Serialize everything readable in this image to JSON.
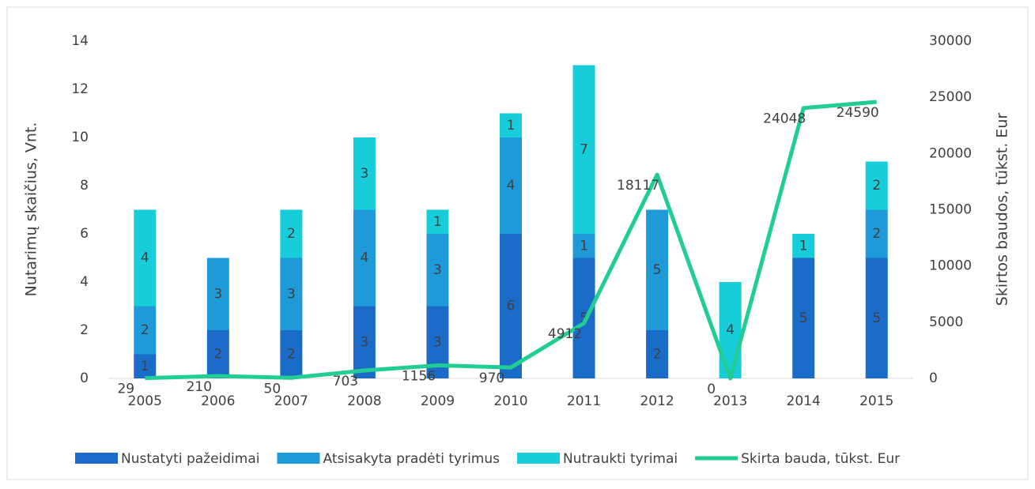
{
  "chart_data": {
    "type": "bar-line",
    "categories": [
      "2005",
      "2006",
      "2007",
      "2008",
      "2009",
      "2010",
      "2011",
      "2012",
      "2013",
      "2014",
      "2015"
    ],
    "series": [
      {
        "name": "Nustatyti pažeidimai",
        "type": "bar",
        "color": "#1a6cc8",
        "values": [
          1,
          2,
          2,
          3,
          3,
          6,
          5,
          2,
          null,
          5,
          5
        ]
      },
      {
        "name": "Atsisakyta pradėti tyrimus",
        "type": "bar",
        "color": "#1f9ad8",
        "values": [
          2,
          3,
          3,
          4,
          3,
          4,
          1,
          5,
          null,
          null,
          2
        ]
      },
      {
        "name": "Nutraukti tyrimai",
        "type": "bar",
        "color": "#16cdd9",
        "values": [
          4,
          null,
          2,
          3,
          1,
          1,
          7,
          null,
          4,
          1,
          2
        ]
      },
      {
        "name": "Skirta bauda, tūkst. Eur",
        "type": "line",
        "axis": "y2",
        "color": "#22cc95",
        "values": [
          29,
          210,
          50,
          703,
          1156,
          970,
          4912,
          18117,
          0,
          24048,
          24590
        ]
      }
    ],
    "ylabel": "Nutarimų skaičius, Vnt.",
    "y2label": "Skirtos baudos, tūkst. Eur",
    "ylim": [
      0,
      14
    ],
    "yticks": [
      0,
      2,
      4,
      6,
      8,
      10,
      12,
      14
    ],
    "y2lim": [
      0,
      30000
    ],
    "y2ticks": [
      0,
      5000,
      10000,
      15000,
      20000,
      25000,
      30000
    ],
    "stacked": true,
    "legend": "bottom",
    "grid": false
  }
}
